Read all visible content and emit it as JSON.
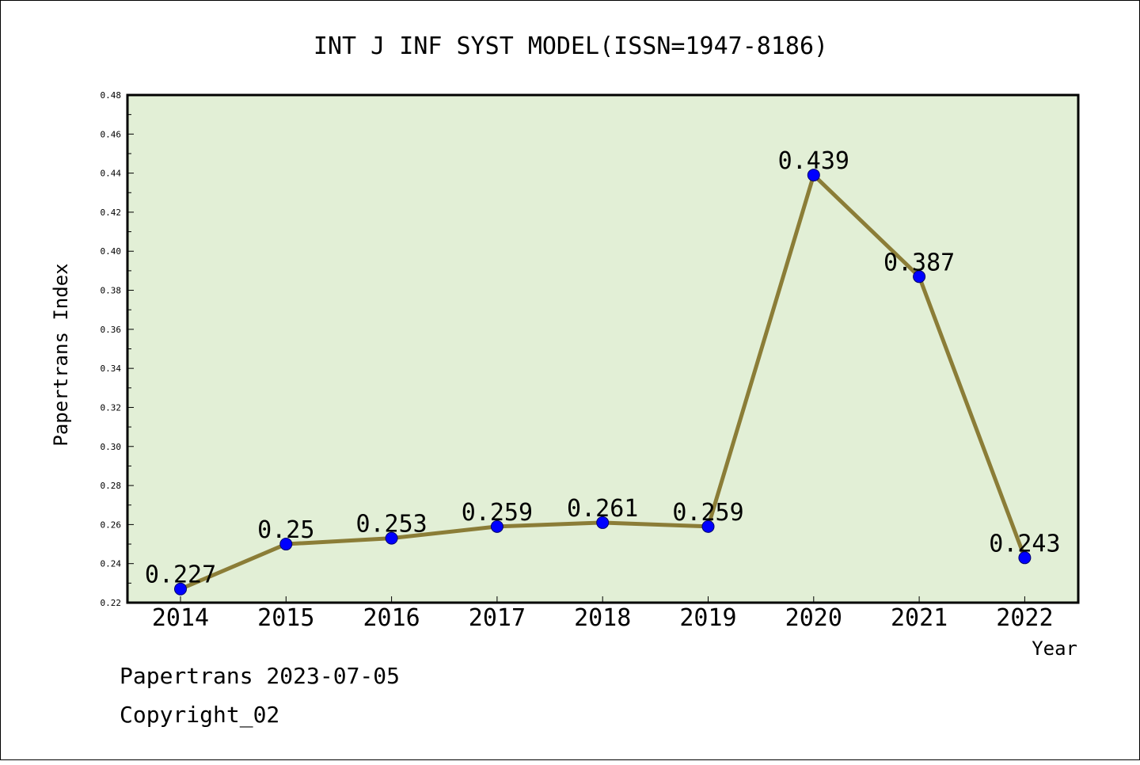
{
  "chart_data": {
    "type": "line",
    "title": "INT J INF SYST MODEL(ISSN=1947-8186)",
    "xlabel": "Year",
    "ylabel": "Papertrans Index",
    "categories": [
      "2014",
      "2015",
      "2016",
      "2017",
      "2018",
      "2019",
      "2020",
      "2021",
      "2022"
    ],
    "values": [
      0.227,
      0.25,
      0.253,
      0.259,
      0.261,
      0.259,
      0.439,
      0.387,
      0.243
    ],
    "data_labels": [
      "0.227",
      "0.25",
      "0.253",
      "0.259",
      "0.261",
      "0.259",
      "0.439",
      "0.387",
      "0.243"
    ],
    "ylim": [
      0.22,
      0.48
    ],
    "yticks": [
      "0.22",
      "0.24",
      "0.26",
      "0.28",
      "0.30",
      "0.32",
      "0.34",
      "0.36",
      "0.38",
      "0.40",
      "0.42",
      "0.44",
      "0.46",
      "0.48"
    ],
    "grid": false,
    "legend": "none",
    "colors": {
      "plot_background": "#e2efd6",
      "line": "#8b7d37",
      "marker": "#0000ff"
    }
  },
  "footer": {
    "source": "Papertrans 2023-07-05",
    "copyright": "Copyright_02"
  }
}
